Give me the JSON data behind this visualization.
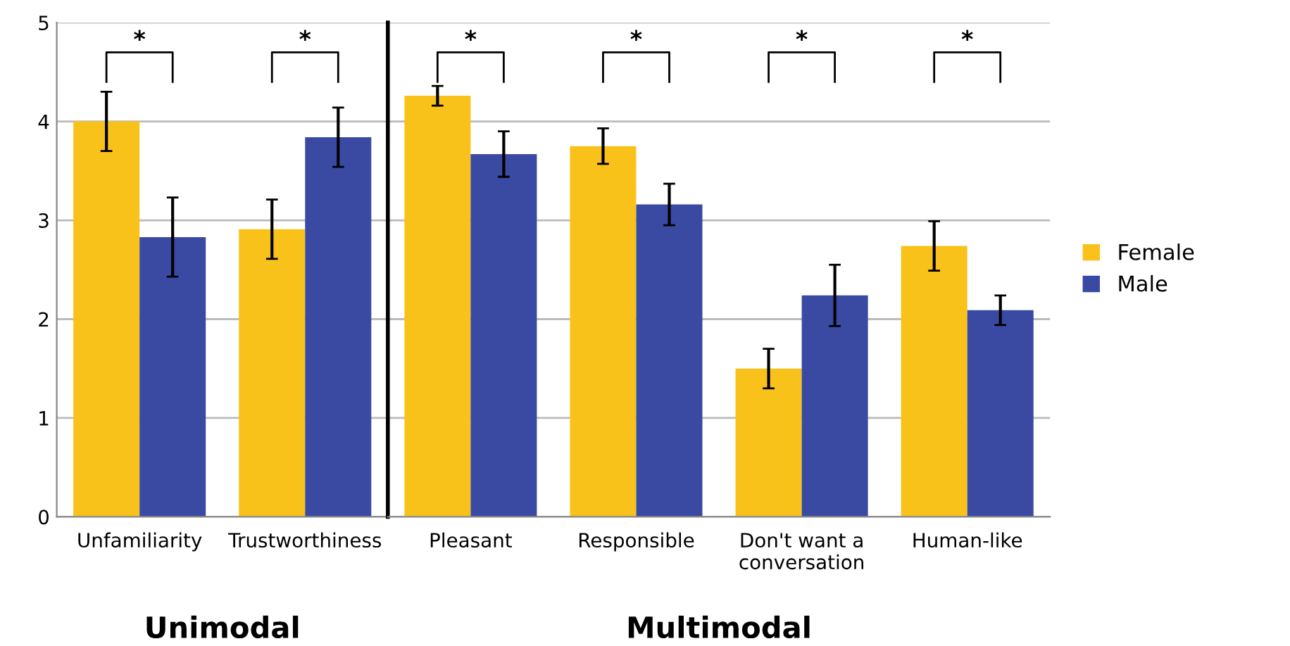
{
  "chart_data": [
    {
      "type": "bar",
      "xlabel": "Unimodal",
      "categories": [
        "Unfamiliarity",
        "Trustworthiness"
      ],
      "series": [
        {
          "color": "#f9c21a",
          "values": [
            4.0,
            2.91
          ],
          "errors": [
            0.3,
            0.3
          ]
        },
        {
          "color": "#3a4aa3",
          "values": [
            2.83,
            3.84
          ],
          "errors": [
            0.4,
            0.3
          ]
        }
      ],
      "ylim": [
        0,
        5
      ],
      "yticks": [
        0,
        1,
        2,
        3,
        4,
        5
      ],
      "grid": "y",
      "annotations": [
        "*",
        "*"
      ]
    },
    {
      "type": "bar",
      "xlabel": "Multimodal",
      "categories": [
        "Pleasant",
        "Responsible",
        "Don't want a\nconversation",
        "Human-like"
      ],
      "series": [
        {
          "name": "Female",
          "color": "#f9c21a",
          "values": [
            4.26,
            3.75,
            1.5,
            2.74
          ],
          "errors": [
            0.1,
            0.18,
            0.2,
            0.25
          ]
        },
        {
          "name": "Male",
          "color": "#3a4aa3",
          "values": [
            3.67,
            3.16,
            2.24,
            2.09
          ],
          "errors": [
            0.23,
            0.21,
            0.31,
            0.15
          ]
        }
      ],
      "ylim": [
        0,
        5
      ],
      "yticks": [
        0,
        1,
        2,
        3,
        4,
        5
      ],
      "grid": "y",
      "tick_labels": "x",
      "legend": "right",
      "annotations": [
        "*",
        "*",
        "*",
        "*"
      ]
    }
  ]
}
